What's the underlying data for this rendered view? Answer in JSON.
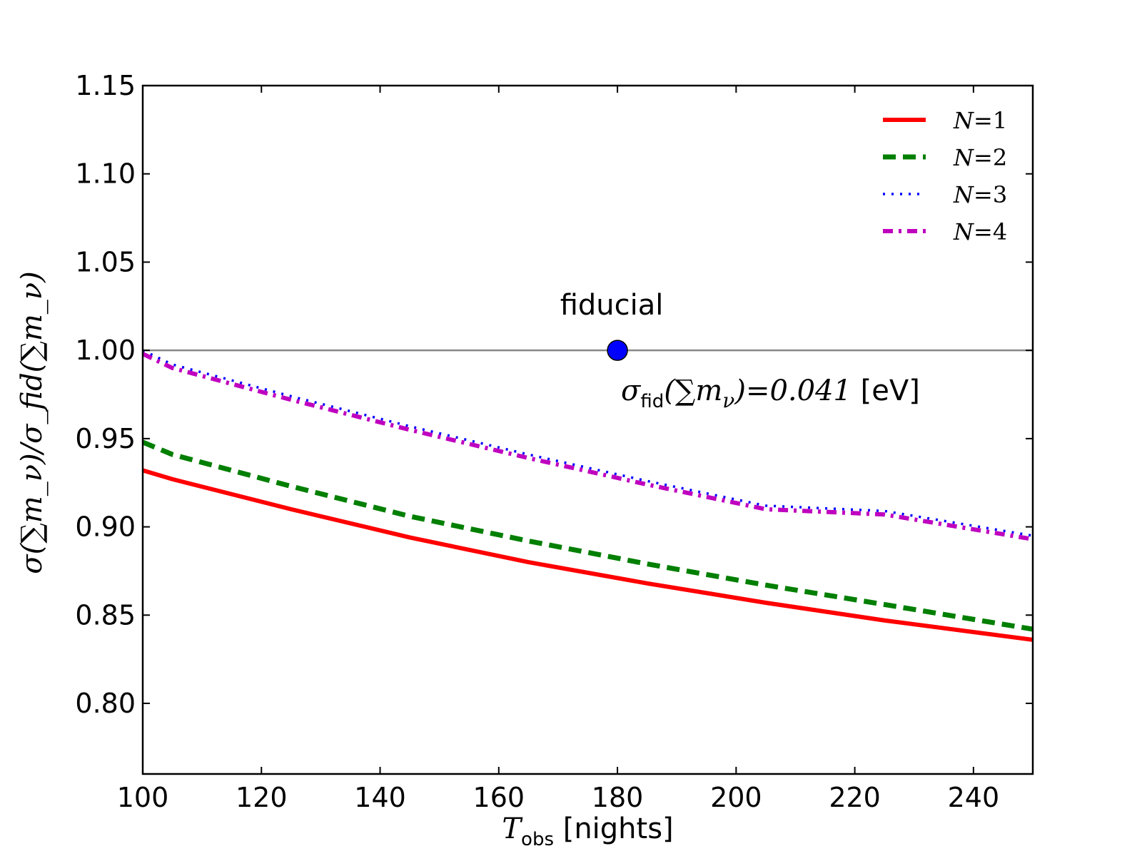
{
  "chart_data": {
    "type": "line",
    "xlabel": {
      "symbol": "T",
      "subscript": "obs",
      "unit": "[nights]"
    },
    "ylabel": {
      "text": "σ(∑m_ν)/σ_fid(∑m_ν)"
    },
    "xlim": [
      100,
      250
    ],
    "ylim": [
      0.76,
      1.15
    ],
    "xticks": [
      100,
      120,
      140,
      160,
      180,
      200,
      220,
      240
    ],
    "yticks": [
      0.8,
      0.85,
      0.9,
      0.95,
      1.0,
      1.05,
      1.1,
      1.15
    ],
    "ytick_labels": [
      "0.80",
      "0.85",
      "0.90",
      "0.95",
      "1.00",
      "1.05",
      "1.10",
      "1.15"
    ],
    "reference_line": {
      "y": 1.0,
      "color": "#888888"
    },
    "fiducial_point": {
      "x": 180,
      "y": 1.0,
      "label": "fiducial",
      "color": "#0000ff",
      "annotation": {
        "sigma": "σ",
        "sub": "fid",
        "body": "(∑m",
        "nu": "ν",
        "close": ")",
        "value": "=0.041",
        "unit": "[eV]"
      }
    },
    "x": [
      100,
      105,
      125,
      145,
      165,
      185,
      205,
      225,
      250
    ],
    "series": [
      {
        "name": "N=1",
        "label_var": "N",
        "label_val": "=1",
        "color": "#ff0000",
        "style": "solid",
        "values": [
          0.932,
          0.927,
          0.91,
          0.894,
          0.88,
          0.868,
          0.857,
          0.847,
          0.836
        ]
      },
      {
        "name": "N=2",
        "label_var": "N",
        "label_val": "=2",
        "color": "#007f00",
        "style": "dashed",
        "values": [
          0.948,
          0.941,
          0.923,
          0.906,
          0.892,
          0.879,
          0.867,
          0.856,
          0.842
        ]
      },
      {
        "name": "N=3",
        "label_var": "N",
        "label_val": "=3",
        "color": "#0000ff",
        "style": "dotted",
        "values": [
          1.0,
          0.992,
          0.974,
          0.957,
          0.941,
          0.926,
          0.912,
          0.909,
          0.895
        ]
      },
      {
        "name": "N=4",
        "label_var": "N",
        "label_val": "=4",
        "color": "#bf00bf",
        "style": "dashdot",
        "values": [
          0.998,
          0.99,
          0.972,
          0.955,
          0.939,
          0.924,
          0.91,
          0.907,
          0.893
        ]
      }
    ],
    "legend": {
      "position": "top-right"
    },
    "grid": false
  }
}
